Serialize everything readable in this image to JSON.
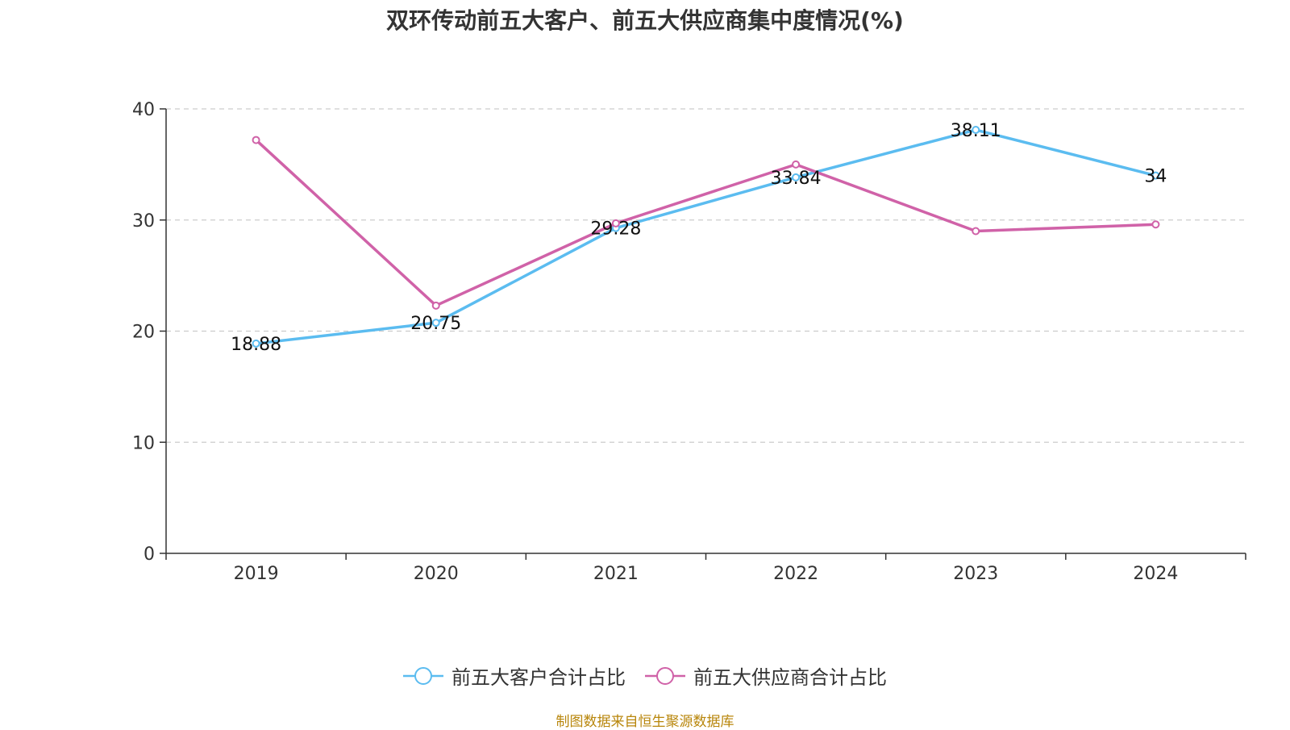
{
  "chart_data": {
    "type": "line",
    "title": "双环传动前五大客户、前五大供应商集中度情况(%)",
    "categories": [
      "2019",
      "2020",
      "2021",
      "2022",
      "2023",
      "2024"
    ],
    "ylim": [
      0,
      40
    ],
    "yticks": [
      0,
      10,
      20,
      30,
      40
    ],
    "grid": true,
    "legend_position": "bottom",
    "series": [
      {
        "name": "前五大客户合计占比",
        "color": "#5bbcf0",
        "values": [
          18.88,
          20.75,
          29.28,
          33.84,
          38.11,
          34
        ],
        "labels": [
          "18.88",
          "20.75",
          "29.28",
          "33.84",
          "38.11",
          "34"
        ]
      },
      {
        "name": "前五大供应商合计占比",
        "color": "#d062a8",
        "values": [
          37.2,
          22.3,
          29.7,
          35.0,
          29.0,
          29.6
        ]
      }
    ]
  },
  "footer": {
    "source": "制图数据来自恒生聚源数据库"
  }
}
